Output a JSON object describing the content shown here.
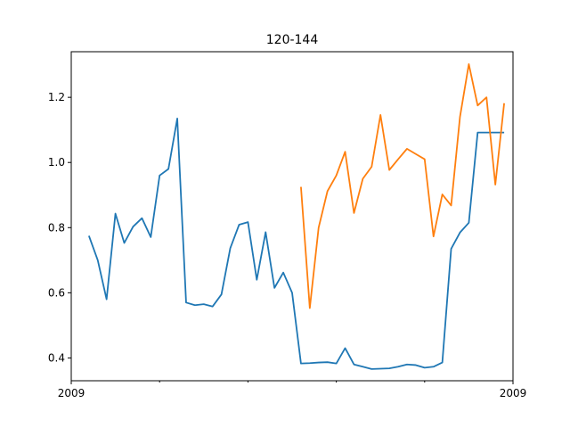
{
  "chart_data": {
    "type": "line",
    "title": "120-144",
    "xlabel": "",
    "ylabel": "",
    "x_tick_labels": [
      "2009",
      "",
      "",
      "",
      "",
      "2009"
    ],
    "y_ticks": [
      0.4,
      0.6,
      0.8,
      1.0,
      1.2
    ],
    "y_tick_labels": [
      "0.4",
      "0.6",
      "0.8",
      "1.0",
      "1.2"
    ],
    "xlim": [
      0,
      50
    ],
    "ylim": [
      0.33,
      1.34
    ],
    "grid": false,
    "series": [
      {
        "color": "#1f77b4",
        "x": [
          2,
          3,
          4,
          5,
          6,
          7,
          8,
          9,
          10,
          11,
          12,
          13,
          14,
          15,
          16,
          17,
          18,
          19,
          20,
          21,
          22,
          23,
          24,
          25,
          26,
          27,
          28,
          29,
          30,
          31,
          32,
          33,
          34,
          35,
          36,
          37,
          38,
          39,
          40,
          41,
          42,
          43,
          44,
          45,
          46,
          47,
          48,
          49
        ],
        "values": [
          0.775,
          0.7,
          0.58,
          0.843,
          0.753,
          0.803,
          0.829,
          0.771,
          0.96,
          0.98,
          1.135,
          0.57,
          0.562,
          0.565,
          0.558,
          0.595,
          0.737,
          0.809,
          0.817,
          0.64,
          0.786,
          0.615,
          0.662,
          0.6,
          0.383,
          0.384,
          0.386,
          0.387,
          0.383,
          0.43,
          0.38,
          0.373,
          0.366,
          0.367,
          0.368,
          0.373,
          0.38,
          0.378,
          0.37,
          0.373,
          0.386,
          0.735,
          0.785,
          0.815,
          1.092,
          1.092,
          1.092,
          1.092
        ]
      },
      {
        "color": "#ff7f0e",
        "x": [
          26,
          27,
          28,
          29,
          30,
          31,
          32,
          33,
          34,
          35,
          36,
          37,
          38,
          39,
          40,
          41,
          42,
          43,
          44,
          45,
          46,
          47,
          48,
          49
        ],
        "values": [
          0.925,
          0.553,
          0.8,
          0.912,
          0.96,
          1.033,
          0.845,
          0.95,
          0.987,
          1.146,
          0.977,
          1.01,
          1.042,
          1.026,
          1.01,
          0.773,
          0.902,
          0.868,
          1.14,
          1.302,
          1.175,
          1.2,
          0.932,
          1.182
        ]
      }
    ]
  }
}
